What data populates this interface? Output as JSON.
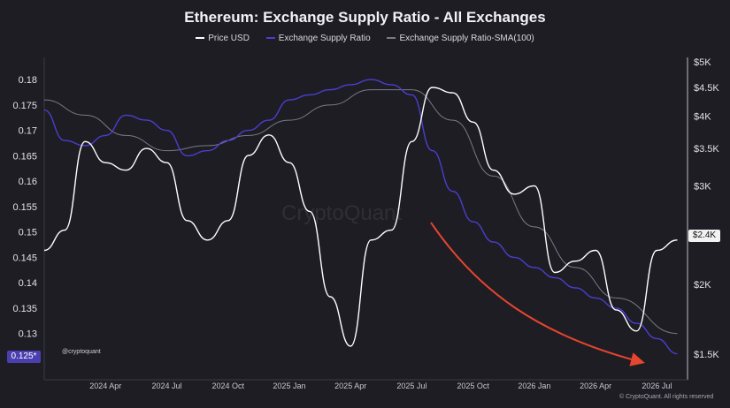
{
  "chart_data": {
    "type": "line",
    "title": "Ethereum: Exchange Supply Ratio - All Exchanges",
    "x_ticks": [
      "2024 Apr",
      "2024 Jul",
      "2024 Oct",
      "2025 Jan",
      "2025 Apr",
      "2025 Jul",
      "2025 Oct",
      "2026 Jan",
      "2026 Apr",
      "2026 Jul"
    ],
    "y_left": {
      "ticks": [
        0.18,
        0.175,
        0.17,
        0.165,
        0.16,
        0.155,
        0.15,
        0.145,
        0.14,
        0.135,
        0.13,
        0.125
      ],
      "range": [
        0.1235,
        0.1835
      ]
    },
    "y_right": {
      "ticks": [
        "$5K",
        "$4.5K",
        "$4K",
        "$3.5K",
        "$3K",
        "$2K",
        "$1.5K"
      ],
      "values": [
        5000,
        4500,
        4000,
        3500,
        3000,
        2000,
        1500
      ],
      "scale": "log"
    },
    "series": [
      {
        "name": "Price USD",
        "color": "#ffffff",
        "axis": "right",
        "x": [
          "2024-01",
          "2024-02",
          "2024-03",
          "2024-04",
          "2024-05",
          "2024-06",
          "2024-07",
          "2024-08",
          "2024-09",
          "2024-10",
          "2024-11",
          "2024-12",
          "2025-01",
          "2025-02",
          "2025-03",
          "2025-04",
          "2025-05",
          "2025-06",
          "2025-07",
          "2025-08",
          "2025-09",
          "2025-10",
          "2025-11",
          "2025-12",
          "2026-01",
          "2026-02",
          "2026-03",
          "2026-04",
          "2026-05",
          "2026-06",
          "2026-07",
          "2026-08"
        ],
        "values": [
          2300,
          2500,
          3600,
          3300,
          3200,
          3500,
          3300,
          2600,
          2400,
          2600,
          3400,
          3700,
          3300,
          2700,
          1900,
          1550,
          2400,
          2500,
          3600,
          4500,
          4400,
          3900,
          3200,
          2900,
          3000,
          2100,
          2200,
          2300,
          1800,
          1650,
          2300,
          2400
        ]
      },
      {
        "name": "Exchange Supply Ratio",
        "color": "#4a3fd0",
        "axis": "left",
        "x": [
          "2024-01",
          "2024-02",
          "2024-03",
          "2024-04",
          "2024-05",
          "2024-06",
          "2024-07",
          "2024-08",
          "2024-09",
          "2024-10",
          "2024-11",
          "2024-12",
          "2025-01",
          "2025-02",
          "2025-03",
          "2025-04",
          "2025-05",
          "2025-06",
          "2025-07",
          "2025-08",
          "2025-09",
          "2025-10",
          "2025-11",
          "2025-12",
          "2026-01",
          "2026-02",
          "2026-03",
          "2026-04",
          "2026-05",
          "2026-06",
          "2026-07",
          "2026-08"
        ],
        "values": [
          0.174,
          0.168,
          0.167,
          0.169,
          0.173,
          0.172,
          0.17,
          0.165,
          0.166,
          0.168,
          0.17,
          0.172,
          0.176,
          0.177,
          0.178,
          0.179,
          0.18,
          0.179,
          0.177,
          0.166,
          0.158,
          0.152,
          0.148,
          0.145,
          0.143,
          0.141,
          0.139,
          0.137,
          0.135,
          0.132,
          0.129,
          0.126
        ]
      },
      {
        "name": "Exchange Supply Ratio-SMA(100)",
        "color": "#7a7a86",
        "axis": "left",
        "x": [
          "2024-01",
          "2024-03",
          "2024-05",
          "2024-07",
          "2024-09",
          "2024-11",
          "2025-01",
          "2025-03",
          "2025-05",
          "2025-07",
          "2025-09",
          "2025-11",
          "2026-01",
          "2026-03",
          "2026-05",
          "2026-08"
        ],
        "values": [
          0.176,
          0.173,
          0.169,
          0.166,
          0.167,
          0.169,
          0.172,
          0.175,
          0.178,
          0.178,
          0.172,
          0.161,
          0.151,
          0.143,
          0.137,
          0.13
        ]
      }
    ],
    "current_values": {
      "ratio": "0.125*",
      "price": "$2.4K"
    },
    "annotations": {
      "watermark": "CryptoQuant",
      "handle": "@cryptoquant",
      "footer": "© CryptoQuant. All rights reserved",
      "trend_arrow": "red, downward"
    },
    "legend": "top-center",
    "grid": false
  }
}
